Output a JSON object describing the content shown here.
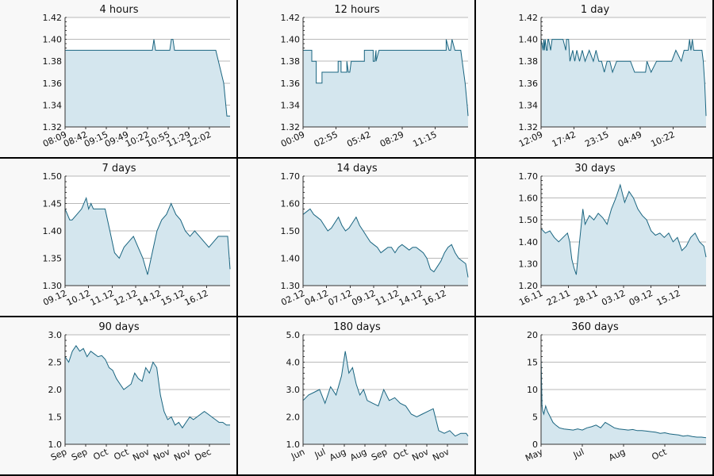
{
  "chart_data": [
    {
      "type": "line",
      "title": "4 hours",
      "ylim": [
        1.32,
        1.42
      ],
      "yticks": [
        "1.42",
        "1.40",
        "1.38",
        "1.36",
        "1.34",
        "1.32"
      ],
      "xtick_labels": [
        "08:09",
        "08:42",
        "09:15",
        "09:49",
        "10:22",
        "10:55",
        "11:29",
        "12:02"
      ],
      "x": [
        0,
        0.55,
        0.55,
        0.56,
        0.57,
        0.58,
        0.66,
        0.67,
        0.68,
        0.69,
        0.95,
        1.0,
        1.0,
        1.02,
        1.04
      ],
      "y": [
        1.39,
        1.39,
        1.39,
        1.4,
        1.39,
        1.39,
        1.39,
        1.4,
        1.4,
        1.39,
        1.39,
        1.36,
        1.36,
        1.33,
        1.33
      ]
    },
    {
      "type": "line",
      "title": "12 hours",
      "ylim": [
        1.32,
        1.42
      ],
      "yticks": [
        "1.42",
        "1.40",
        "1.38",
        "1.36",
        "1.34",
        "1.32"
      ],
      "xtick_labels": [
        "00:09",
        "02:55",
        "05:42",
        "08:29",
        "11:15"
      ],
      "x": [
        0,
        0.3,
        0.3,
        0.45,
        0.45,
        0.65,
        0.65,
        1.2,
        1.2,
        1.3,
        1.3,
        1.5,
        1.5,
        1.55,
        1.6,
        1.65,
        1.65,
        2.1,
        2.1,
        2.4,
        2.4,
        2.45,
        2.5,
        2.5,
        2.6,
        2.6,
        3.6,
        3.6,
        3.8,
        3.8,
        3.9,
        3.9,
        4.6,
        4.6,
        4.9,
        4.9,
        5.0,
        5.05,
        5.1,
        5.2,
        5.4,
        5.55,
        5.62,
        5.65
      ],
      "y": [
        1.39,
        1.39,
        1.38,
        1.38,
        1.36,
        1.36,
        1.37,
        1.37,
        1.38,
        1.38,
        1.37,
        1.37,
        1.38,
        1.37,
        1.37,
        1.38,
        1.38,
        1.38,
        1.39,
        1.39,
        1.38,
        1.38,
        1.39,
        1.38,
        1.39,
        1.39,
        1.39,
        1.39,
        1.39,
        1.39,
        1.39,
        1.39,
        1.39,
        1.39,
        1.39,
        1.4,
        1.39,
        1.39,
        1.4,
        1.39,
        1.39,
        1.36,
        1.34,
        1.33
      ]
    },
    {
      "type": "line",
      "title": "1 day",
      "ylim": [
        1.32,
        1.42
      ],
      "yticks": [
        "1.42",
        "1.40",
        "1.38",
        "1.36",
        "1.34",
        "1.32"
      ],
      "xtick_labels": [
        "12:09",
        "17:42",
        "23:15",
        "04:49",
        "10:22"
      ],
      "x": [
        0,
        0.3,
        0.4,
        0.5,
        0.6,
        0.8,
        0.9,
        1.0,
        1.1,
        1.4,
        1.6,
        2.2,
        2.6,
        3.2,
        3.6,
        3.7,
        4.0,
        4.2,
        4.6,
        4.9,
        5.2,
        5.6,
        6.0,
        6.4,
        7.0,
        7.6,
        8.0,
        8.4,
        8.8,
        9.2,
        9.6,
        10.0,
        10.4,
        11.0,
        11.4,
        11.6,
        12.2,
        13.0,
        13.6,
        14.4,
        15.2,
        15.4,
        16.0,
        16.8,
        17.4,
        18.0,
        19.0,
        19.6,
        20.4,
        20.8,
        21.0,
        21.2,
        21.4,
        21.6,
        21.8,
        22.0,
        22.2,
        22.4,
        22.6,
        22.8,
        23.0,
        23.2,
        23.4,
        23.6,
        23.8,
        24.0
      ],
      "y": [
        1.4,
        1.39,
        1.4,
        1.39,
        1.4,
        1.39,
        1.39,
        1.4,
        1.4,
        1.39,
        1.4,
        1.4,
        1.4,
        1.4,
        1.39,
        1.4,
        1.4,
        1.38,
        1.39,
        1.38,
        1.39,
        1.38,
        1.39,
        1.38,
        1.39,
        1.38,
        1.39,
        1.38,
        1.38,
        1.37,
        1.38,
        1.38,
        1.37,
        1.38,
        1.38,
        1.38,
        1.38,
        1.38,
        1.37,
        1.37,
        1.37,
        1.38,
        1.37,
        1.38,
        1.38,
        1.38,
        1.38,
        1.39,
        1.38,
        1.39,
        1.39,
        1.39,
        1.39,
        1.4,
        1.39,
        1.4,
        1.39,
        1.39,
        1.39,
        1.39,
        1.39,
        1.39,
        1.39,
        1.38,
        1.36,
        1.33
      ]
    },
    {
      "type": "line",
      "title": "7 days",
      "ylim": [
        1.3,
        1.5
      ],
      "yticks": [
        "1.50",
        "1.45",
        "1.40",
        "1.35",
        "1.30"
      ],
      "xtick_labels": [
        "09.12",
        "10.12",
        "11.12",
        "12.12",
        "14.12",
        "15.12",
        "16.12"
      ],
      "x": [
        0,
        0.1,
        0.2,
        0.3,
        0.5,
        0.7,
        0.9,
        1.0,
        1.1,
        1.2,
        1.3,
        1.5,
        1.7,
        1.9,
        2.1,
        2.3,
        2.5,
        2.7,
        2.9,
        3.1,
        3.3,
        3.5,
        3.7,
        3.9,
        4.1,
        4.3,
        4.5,
        4.7,
        4.9,
        5.1,
        5.3,
        5.5,
        5.7,
        5.9,
        6.1,
        6.3,
        6.5,
        6.7,
        6.9,
        7.0
      ],
      "y": [
        1.44,
        1.43,
        1.42,
        1.42,
        1.43,
        1.44,
        1.46,
        1.44,
        1.45,
        1.44,
        1.44,
        1.44,
        1.44,
        1.4,
        1.36,
        1.35,
        1.37,
        1.38,
        1.39,
        1.37,
        1.35,
        1.32,
        1.36,
        1.4,
        1.42,
        1.43,
        1.45,
        1.43,
        1.42,
        1.4,
        1.39,
        1.4,
        1.39,
        1.38,
        1.37,
        1.38,
        1.39,
        1.39,
        1.39,
        1.33
      ]
    },
    {
      "type": "line",
      "title": "14 days",
      "ylim": [
        1.3,
        1.7
      ],
      "yticks": [
        "1.70",
        "1.60",
        "1.50",
        "1.40",
        "1.30"
      ],
      "xtick_labels": [
        "02.12",
        "04.12",
        "07.12",
        "09.12",
        "11.12",
        "14.12",
        "16.12"
      ],
      "x": [
        0,
        0.3,
        0.6,
        0.9,
        1.2,
        1.5,
        1.8,
        2.1,
        2.4,
        2.7,
        3.0,
        3.3,
        3.6,
        3.9,
        4.2,
        4.5,
        4.8,
        5.1,
        5.4,
        5.7,
        6.0,
        6.3,
        6.6,
        6.9,
        7.2,
        7.5,
        7.8,
        8.1,
        8.4,
        8.7,
        9.0,
        9.3,
        9.6,
        9.9,
        10.2,
        10.5,
        10.8,
        11.1,
        11.4,
        11.7,
        12.0,
        12.3,
        12.6,
        12.9,
        13.2,
        13.5,
        13.8,
        14.0
      ],
      "y": [
        1.56,
        1.57,
        1.58,
        1.56,
        1.55,
        1.54,
        1.52,
        1.5,
        1.51,
        1.53,
        1.55,
        1.52,
        1.5,
        1.51,
        1.53,
        1.55,
        1.52,
        1.5,
        1.48,
        1.46,
        1.45,
        1.44,
        1.42,
        1.43,
        1.44,
        1.44,
        1.42,
        1.44,
        1.45,
        1.44,
        1.43,
        1.44,
        1.44,
        1.43,
        1.42,
        1.4,
        1.36,
        1.35,
        1.37,
        1.39,
        1.42,
        1.44,
        1.45,
        1.42,
        1.4,
        1.39,
        1.38,
        1.33
      ]
    },
    {
      "type": "line",
      "title": "30 days",
      "ylim": [
        1.2,
        1.7
      ],
      "yticks": [
        "1.70",
        "1.60",
        "1.50",
        "1.40",
        "1.30",
        "1.20"
      ],
      "xtick_labels": [
        "16.11",
        "22.11",
        "28.11",
        "03.12",
        "09.12",
        "15.12"
      ],
      "x": [
        0,
        0.8,
        1.6,
        2.4,
        3.2,
        4.0,
        4.8,
        5.2,
        5.6,
        6.0,
        6.4,
        6.8,
        7.2,
        7.6,
        8.0,
        8.8,
        9.6,
        10.4,
        11.2,
        12.0,
        12.8,
        13.6,
        14.4,
        15.2,
        16.0,
        16.8,
        17.6,
        18.4,
        19.2,
        20.0,
        20.8,
        21.6,
        22.4,
        23.2,
        24.0,
        24.8,
        25.6,
        26.4,
        27.2,
        28.0,
        28.8,
        29.6,
        30.0
      ],
      "y": [
        1.46,
        1.44,
        1.45,
        1.42,
        1.4,
        1.42,
        1.44,
        1.4,
        1.32,
        1.28,
        1.25,
        1.35,
        1.45,
        1.55,
        1.48,
        1.52,
        1.5,
        1.53,
        1.51,
        1.48,
        1.55,
        1.6,
        1.66,
        1.58,
        1.63,
        1.6,
        1.55,
        1.52,
        1.5,
        1.45,
        1.43,
        1.44,
        1.42,
        1.44,
        1.4,
        1.42,
        1.36,
        1.38,
        1.42,
        1.44,
        1.4,
        1.38,
        1.33
      ]
    },
    {
      "type": "line",
      "title": "90 days",
      "ylim": [
        1.0,
        3.0
      ],
      "yticks": [
        "3.0",
        "2.5",
        "2.0",
        "1.5",
        "1.0"
      ],
      "xtick_labels": [
        "Sep",
        "Sep",
        "Oct",
        "Oct",
        "Nov",
        "Nov",
        "Nov",
        "Dec"
      ],
      "x": [
        0,
        2,
        4,
        6,
        8,
        10,
        12,
        14,
        16,
        18,
        20,
        22,
        24,
        26,
        28,
        30,
        32,
        34,
        36,
        38,
        40,
        42,
        44,
        46,
        48,
        50,
        52,
        54,
        56,
        58,
        60,
        62,
        64,
        66,
        68,
        70,
        72,
        74,
        76,
        78,
        80,
        82,
        84,
        86,
        88,
        90
      ],
      "y": [
        2.6,
        2.5,
        2.7,
        2.8,
        2.7,
        2.75,
        2.6,
        2.7,
        2.65,
        2.6,
        2.62,
        2.55,
        2.4,
        2.35,
        2.2,
        2.1,
        2.0,
        2.05,
        2.1,
        2.3,
        2.2,
        2.15,
        2.4,
        2.3,
        2.5,
        2.4,
        1.9,
        1.6,
        1.45,
        1.5,
        1.35,
        1.4,
        1.3,
        1.4,
        1.5,
        1.45,
        1.5,
        1.55,
        1.6,
        1.55,
        1.5,
        1.45,
        1.4,
        1.4,
        1.35,
        1.35
      ]
    },
    {
      "type": "line",
      "title": "180 days",
      "ylim": [
        1.0,
        5.0
      ],
      "yticks": [
        "5.0",
        "4.0",
        "3.0",
        "2.0",
        "1.0"
      ],
      "xtick_labels": [
        "Jun",
        "Jul",
        "Aug",
        "Aug",
        "Sep",
        "Oct",
        "Nov",
        "Nov"
      ],
      "x": [
        0,
        6,
        12,
        18,
        24,
        30,
        36,
        42,
        46,
        50,
        54,
        58,
        62,
        66,
        70,
        76,
        82,
        88,
        94,
        100,
        106,
        112,
        118,
        124,
        130,
        136,
        142,
        148,
        154,
        160,
        166,
        172,
        178,
        180
      ],
      "y": [
        2.6,
        2.8,
        2.9,
        3.0,
        2.5,
        3.1,
        2.8,
        3.5,
        4.4,
        3.6,
        3.8,
        3.2,
        2.8,
        3.0,
        2.6,
        2.5,
        2.4,
        3.0,
        2.6,
        2.7,
        2.5,
        2.4,
        2.1,
        2.0,
        2.1,
        2.2,
        2.3,
        1.5,
        1.4,
        1.5,
        1.3,
        1.4,
        1.4,
        1.3
      ]
    },
    {
      "type": "line",
      "title": "360 days",
      "ylim": [
        0,
        20
      ],
      "yticks": [
        "20",
        "15",
        "10",
        "5",
        "0"
      ],
      "xtick_labels": [
        "May",
        "Jul",
        "Aug",
        "Oct"
      ],
      "x": [
        0,
        2,
        4,
        6,
        10,
        14,
        20,
        26,
        32,
        40,
        50,
        60,
        70,
        80,
        90,
        100,
        110,
        120,
        130,
        140,
        150,
        160,
        170,
        180,
        190,
        200,
        210,
        220,
        230,
        240,
        250,
        260,
        270,
        280,
        290,
        300,
        310,
        320,
        330,
        340,
        350,
        360
      ],
      "y": [
        16,
        7,
        6,
        5.5,
        7,
        6,
        5,
        4,
        3.5,
        3,
        2.8,
        2.7,
        2.6,
        2.8,
        2.6,
        3,
        3.2,
        3.5,
        3,
        4,
        3.5,
        3,
        2.8,
        2.7,
        2.6,
        2.7,
        2.5,
        2.5,
        2.4,
        2.3,
        2.2,
        2.0,
        2.1,
        1.9,
        1.8,
        1.7,
        1.5,
        1.6,
        1.4,
        1.3,
        1.3,
        1.2
      ]
    }
  ]
}
